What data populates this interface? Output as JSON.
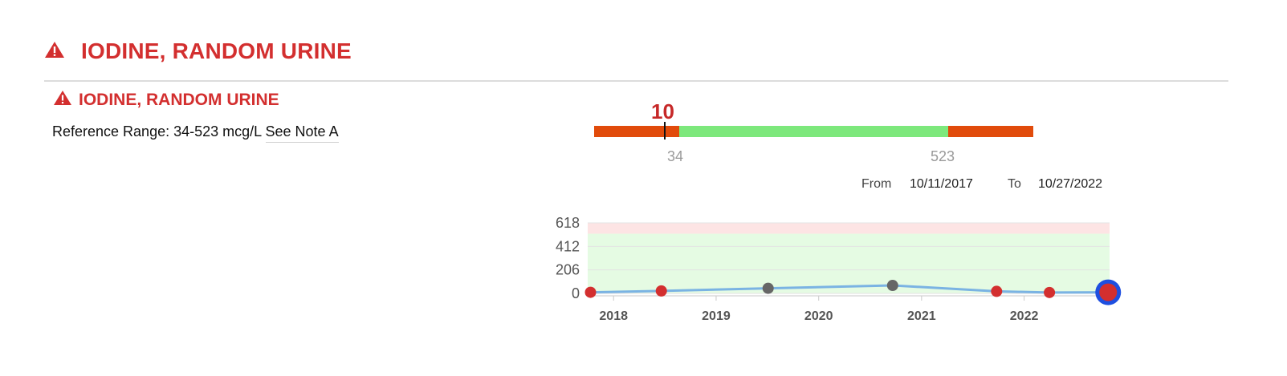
{
  "header": {
    "title": "IODINE, RANDOM URINE",
    "icon": "warning-icon"
  },
  "test": {
    "title": "IODINE, RANDOM URINE",
    "reference_range": "Reference Range: 34-523 mcg/L",
    "note_link": "See Note A"
  },
  "result": {
    "value": "10"
  },
  "range": {
    "low": "34",
    "high": "523"
  },
  "date_filter": {
    "from_label": "From",
    "from_date": "10/11/2017",
    "to_label": "To",
    "to_date": "10/27/2022"
  },
  "colors": {
    "accent": "#d32f2f",
    "abnormal": "#e14b0b",
    "normal": "#7de87c",
    "line": "#7ab3e3",
    "point_abnormal": "#d32f2f",
    "point_normal": "#666666",
    "latest_ring": "#1e4fe0"
  },
  "chart_data": {
    "type": "line",
    "y_ticks": [
      "618",
      "412",
      "206",
      "0"
    ],
    "ylim": [
      0,
      618
    ],
    "reference_range": [
      34,
      523
    ],
    "x_ticks": [
      "2018",
      "2019",
      "2020",
      "2021",
      "2022"
    ],
    "xlim": [
      "2017-10-01",
      "2022-11-01"
    ],
    "series": [
      {
        "points": [
          {
            "date": "2017-10-11",
            "value": 10,
            "status": "abnormal"
          },
          {
            "date": "2018-06-20",
            "value": 22,
            "status": "abnormal"
          },
          {
            "date": "2019-07-05",
            "value": 45,
            "status": "normal"
          },
          {
            "date": "2020-09-20",
            "value": 70,
            "status": "normal"
          },
          {
            "date": "2021-09-25",
            "value": 18,
            "status": "abnormal"
          },
          {
            "date": "2022-04-01",
            "value": 8,
            "status": "abnormal"
          },
          {
            "date": "2022-10-27",
            "value": 10,
            "status": "abnormal",
            "latest": true
          }
        ]
      }
    ]
  }
}
